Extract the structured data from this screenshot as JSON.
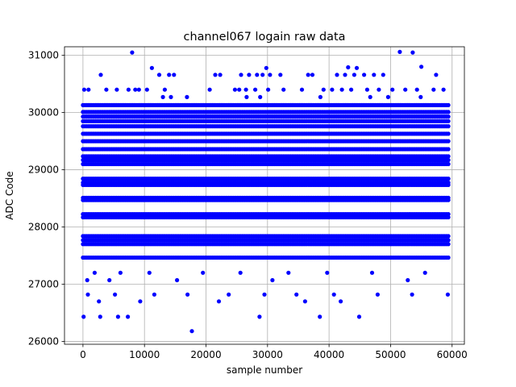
{
  "chart_data": {
    "type": "scatter",
    "title": "channel067 logain raw data",
    "xlabel": "sample number",
    "ylabel": "ADC Code",
    "xlim": [
      -3000,
      62000
    ],
    "ylim": [
      25950,
      31150
    ],
    "xticks": [
      0,
      10000,
      20000,
      30000,
      40000,
      50000,
      60000
    ],
    "xtick_labels": [
      "0",
      "10000",
      "20000",
      "30000",
      "40000",
      "50000",
      "60000"
    ],
    "yticks": [
      26000,
      27000,
      28000,
      29000,
      30000,
      31000
    ],
    "ytick_labels": [
      "26000",
      "27000",
      "28000",
      "29000",
      "30000",
      "31000"
    ],
    "grid": true,
    "marker_color": "#0000ff",
    "series": [
      {
        "dense_levels": [
          27465,
          27700,
          27770,
          27840,
          28170,
          28225,
          28470,
          28510,
          28735,
          28775,
          28845,
          29100,
          29170,
          29235,
          29360,
          29500,
          29630,
          29760,
          29850,
          29930,
          30010,
          30130
        ],
        "dense_x_range": [
          0,
          59500
        ],
        "sparse_points": [
          [
            100,
            26430
          ],
          [
            2800,
            26430
          ],
          [
            5700,
            26430
          ],
          [
            7300,
            26430
          ],
          [
            28700,
            26430
          ],
          [
            38500,
            26430
          ],
          [
            44900,
            26430
          ],
          [
            17700,
            26180
          ],
          [
            2600,
            26700
          ],
          [
            9300,
            26700
          ],
          [
            22100,
            26700
          ],
          [
            36100,
            26700
          ],
          [
            41900,
            26700
          ],
          [
            700,
            27070
          ],
          [
            4300,
            27070
          ],
          [
            15300,
            27070
          ],
          [
            30800,
            27070
          ],
          [
            52800,
            27070
          ],
          [
            1900,
            27200
          ],
          [
            6100,
            27200
          ],
          [
            10800,
            27200
          ],
          [
            19500,
            27200
          ],
          [
            25600,
            27200
          ],
          [
            33400,
            27200
          ],
          [
            39700,
            27200
          ],
          [
            47000,
            27200
          ],
          [
            55600,
            27200
          ],
          [
            800,
            26820
          ],
          [
            5200,
            26820
          ],
          [
            11600,
            26820
          ],
          [
            17000,
            26820
          ],
          [
            23700,
            26820
          ],
          [
            29500,
            26820
          ],
          [
            34700,
            26820
          ],
          [
            40800,
            26820
          ],
          [
            47900,
            26820
          ],
          [
            53500,
            26820
          ],
          [
            59300,
            26820
          ],
          [
            8000,
            31050
          ],
          [
            51500,
            31060
          ],
          [
            53600,
            31050
          ],
          [
            11200,
            30780
          ],
          [
            29800,
            30780
          ],
          [
            43100,
            30790
          ],
          [
            44500,
            30780
          ],
          [
            55000,
            30800
          ],
          [
            2900,
            30660
          ],
          [
            12400,
            30660
          ],
          [
            14000,
            30660
          ],
          [
            14800,
            30660
          ],
          [
            21500,
            30660
          ],
          [
            22300,
            30660
          ],
          [
            25700,
            30660
          ],
          [
            27000,
            30660
          ],
          [
            28300,
            30660
          ],
          [
            29200,
            30660
          ],
          [
            30400,
            30660
          ],
          [
            32100,
            30660
          ],
          [
            36600,
            30660
          ],
          [
            37300,
            30660
          ],
          [
            41300,
            30660
          ],
          [
            42600,
            30660
          ],
          [
            44100,
            30660
          ],
          [
            45700,
            30660
          ],
          [
            47300,
            30660
          ],
          [
            48800,
            30660
          ],
          [
            57400,
            30660
          ],
          [
            200,
            30400
          ],
          [
            900,
            30400
          ],
          [
            3800,
            30400
          ],
          [
            5500,
            30400
          ],
          [
            7400,
            30400
          ],
          [
            8500,
            30400
          ],
          [
            9100,
            30400
          ],
          [
            10400,
            30400
          ],
          [
            13300,
            30400
          ],
          [
            20600,
            30400
          ],
          [
            24700,
            30400
          ],
          [
            25400,
            30400
          ],
          [
            26500,
            30400
          ],
          [
            28000,
            30400
          ],
          [
            30100,
            30400
          ],
          [
            32600,
            30400
          ],
          [
            35600,
            30400
          ],
          [
            39100,
            30400
          ],
          [
            40500,
            30400
          ],
          [
            42100,
            30400
          ],
          [
            43600,
            30400
          ],
          [
            46200,
            30400
          ],
          [
            48100,
            30400
          ],
          [
            50300,
            30400
          ],
          [
            52400,
            30400
          ],
          [
            54300,
            30400
          ],
          [
            57000,
            30400
          ],
          [
            58600,
            30400
          ],
          [
            13000,
            30270
          ],
          [
            14300,
            30270
          ],
          [
            16900,
            30270
          ],
          [
            26600,
            30270
          ],
          [
            28800,
            30270
          ],
          [
            38600,
            30270
          ],
          [
            46700,
            30270
          ],
          [
            49600,
            30270
          ],
          [
            54900,
            30270
          ]
        ]
      }
    ]
  }
}
